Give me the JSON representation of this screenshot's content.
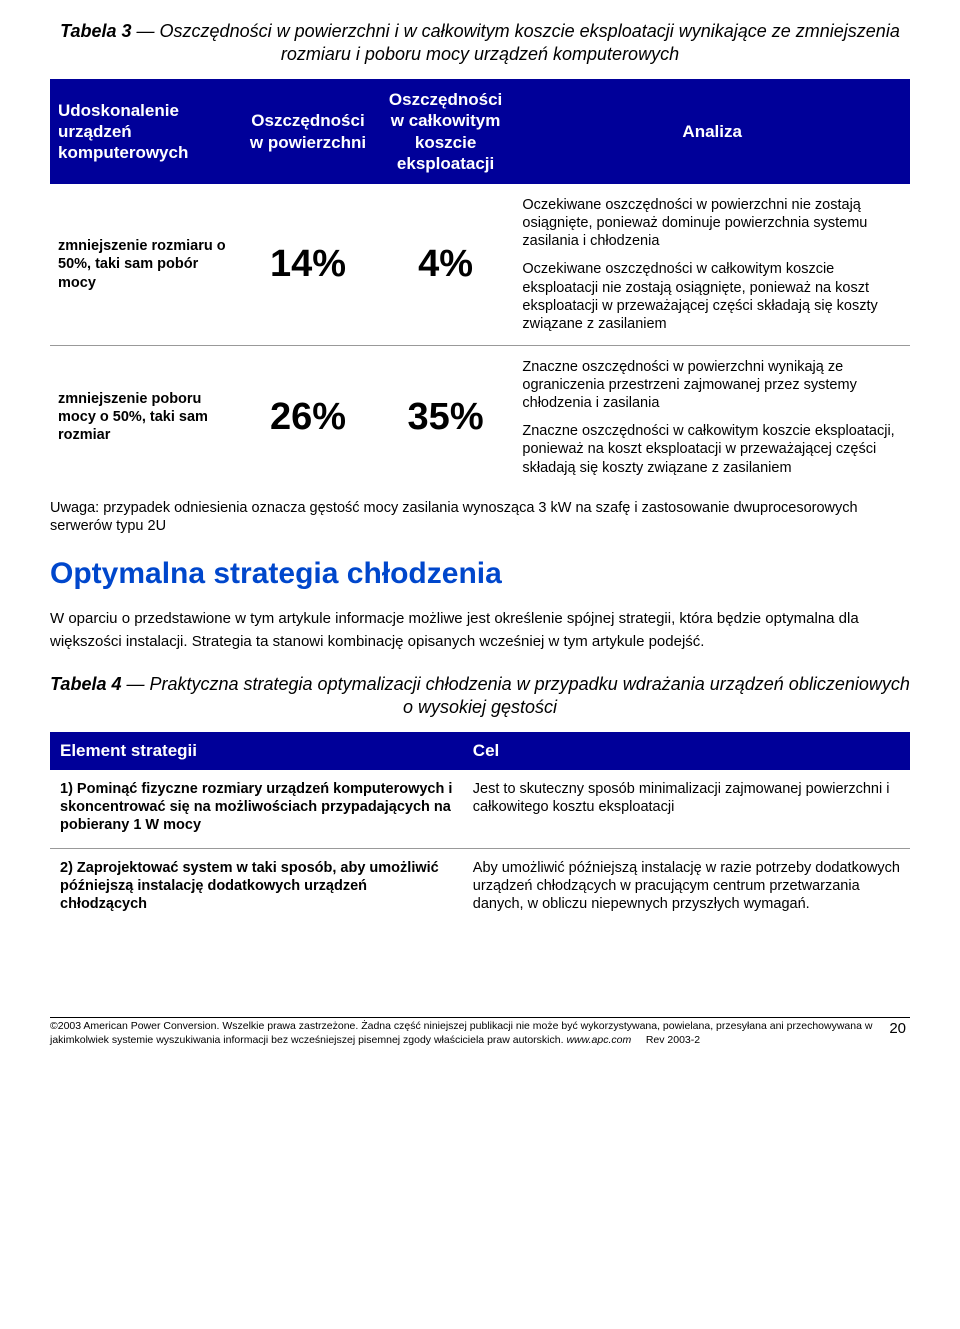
{
  "colors": {
    "header_bg": "#000099",
    "header_text": "#ffffff",
    "body_bg": "#ffffff",
    "body_text": "#000000",
    "section_heading": "#0047cc",
    "rule": "#999999"
  },
  "table3": {
    "title_bold": "Tabela 3",
    "title_rest": " — Oszczędności w powierzchni i w całkowitym koszcie eksploatacji wynikające ze zmniejszenia rozmiaru i poboru mocy urządzeń komputerowych",
    "headers": {
      "col1": "Udoskonalenie urządzeń komputerowych",
      "col2": "Oszczędności w powierzchni",
      "col3": "Oszczędności w całkowitym koszcie eksploatacji",
      "col4": "Analiza"
    },
    "rows": [
      {
        "label": "zmniejszenie rozmiaru o 50%, taki sam pobór mocy",
        "pct_surface": "14%",
        "pct_cost": "4%",
        "analysis": [
          "Oczekiwane oszczędności w powierzchni nie zostają osiągnięte, ponieważ dominuje powierzchnia systemu zasilania i chłodzenia",
          "Oczekiwane oszczędności w całkowitym koszcie eksploatacji nie zostają osiągnięte, ponieważ na koszt eksploatacji w przeważającej części składają się koszty związane z zasilaniem"
        ]
      },
      {
        "label": "zmniejszenie poboru mocy o 50%, taki sam rozmiar",
        "pct_surface": "26%",
        "pct_cost": "35%",
        "analysis": [
          "Znaczne oszczędności w powierzchni wynikają ze ograniczenia przestrzeni zajmowanej przez systemy chłodzenia i zasilania",
          "Znaczne oszczędności w całkowitym koszcie eksploatacji, ponieważ na koszt eksploatacji w przeważającej części składają się koszty związane z zasilaniem"
        ]
      }
    ],
    "note": "Uwaga: przypadek odniesienia oznacza gęstość mocy zasilania wynosząca 3 kW na szafę i zastosowanie dwuprocesorowych serwerów typu 2U"
  },
  "section": {
    "heading": "Optymalna strategia chłodzenia",
    "paragraph": "W oparciu o przedstawione w tym artykule informacje możliwe jest określenie spójnej strategii, która będzie optymalna dla większości instalacji. Strategia ta stanowi kombinację opisanych wcześniej w tym artykule podejść."
  },
  "table4": {
    "title_bold": "Tabela 4",
    "title_rest": " — Praktyczna strategia optymalizacji chłodzenia w przypadku wdrażania urządzeń obliczeniowych o wysokiej gęstości",
    "headers": {
      "col1": "Element strategii",
      "col2": "Cel"
    },
    "rows": [
      {
        "left": "1) Pominąć fizyczne rozmiary urządzeń komputerowych i skoncentrować się na możliwościach przypadających na pobierany 1 W mocy",
        "right": "Jest to skuteczny sposób minimalizacji zajmowanej powierzchni i całkowitego kosztu eksploatacji"
      },
      {
        "left": "2) Zaprojektować system w taki sposób, aby umożliwić późniejszą instalację dodatkowych urządzeń chłodzących",
        "right": "Aby umożliwić późniejszą instalację w razie potrzeby dodatkowych urządzeń chłodzących w pracującym centrum przetwarzania danych, w obliczu niepewnych przyszłych wymagań."
      }
    ]
  },
  "footer": {
    "copyright": "©2003 American Power Conversion. Wszelkie prawa zastrzeżone. Żadna część niniejszej publikacji nie może być wykorzystywana, powielana, przesyłana ani przechowywana w jakimkolwiek systemie wyszukiwania informacji bez wcześniejszej pisemnej zgody właściciela praw autorskich. ",
    "url": "www.apc.com",
    "page": "20",
    "rev": "Rev 2003-2"
  }
}
